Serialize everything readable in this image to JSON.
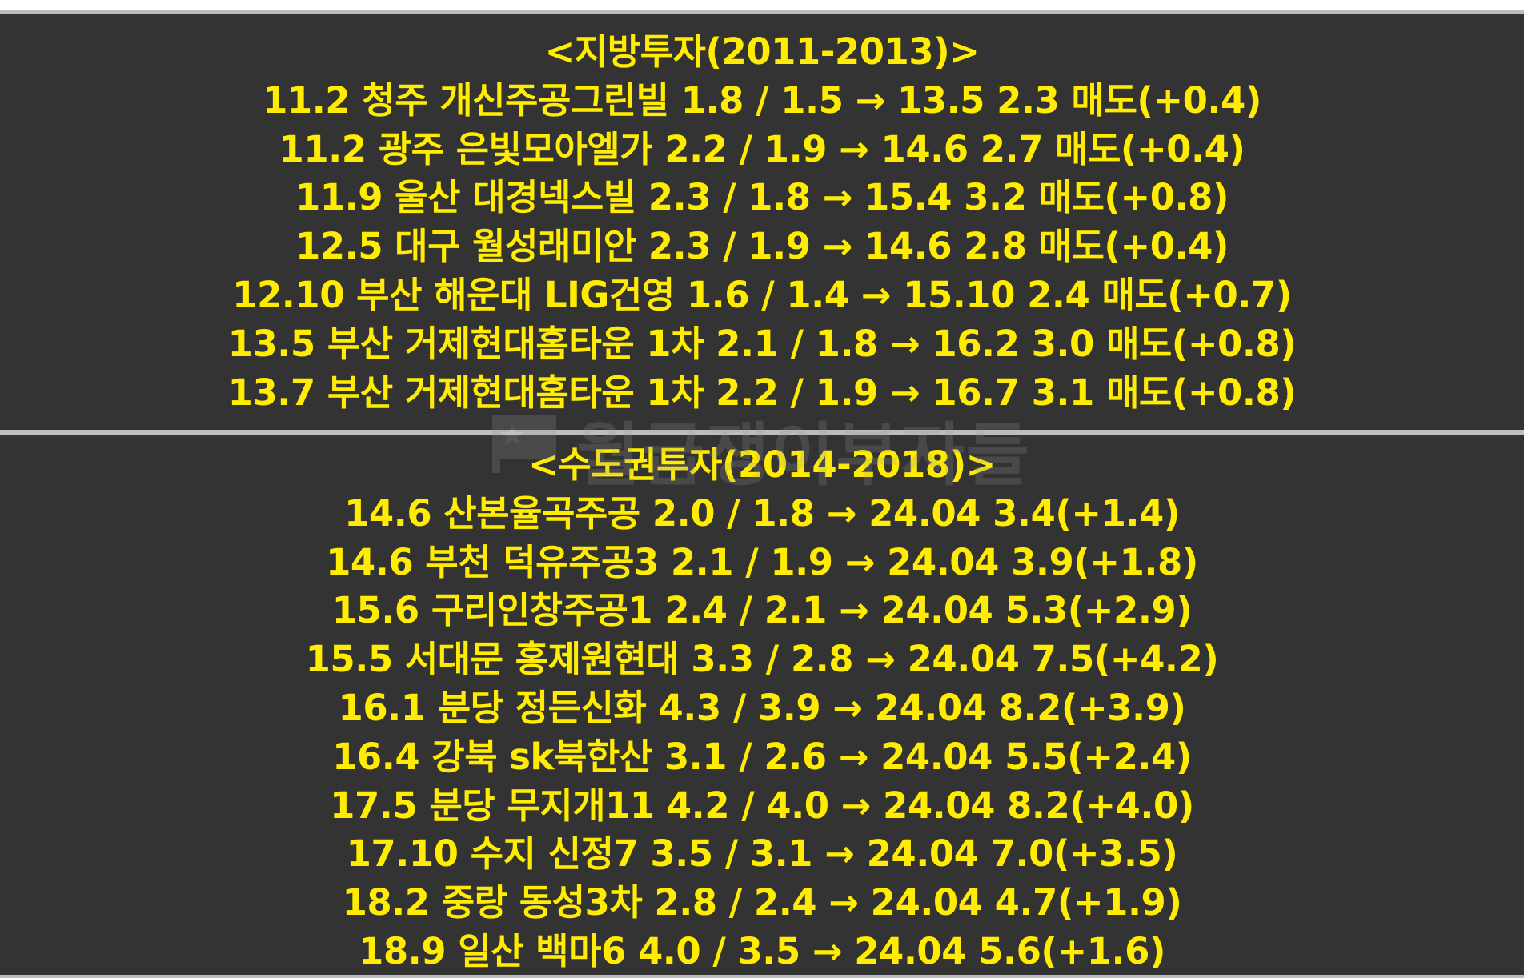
{
  "colors": {
    "background": "#333333",
    "text": "#ffec00",
    "separator": "#bdbdbd"
  },
  "sections": [
    {
      "title": "<지방투자(2011-2013)>",
      "rows": [
        "11.2 청주 개신주공그린빌 1.8 / 1.5 → 13.5 2.3 매도(+0.4)",
        "11.2 광주 은빛모아엘가 2.2 / 1.9 → 14.6 2.7 매도(+0.4)",
        "11.9 울산 대경넥스빌 2.3 / 1.8 → 15.4 3.2 매도(+0.8)",
        "12.5 대구 월성래미안 2.3 / 1.9 → 14.6 2.8 매도(+0.4)",
        "12.10 부산 해운대 LIG건영 1.6 / 1.4 → 15.10 2.4 매도(+0.7)",
        "13.5 부산 거제현대홈타운 1차 2.1 / 1.8 → 16.2 3.0 매도(+0.8)",
        "13.7 부산 거제현대홈타운 1차 2.2 / 1.9 → 16.7 3.1 매도(+0.8)"
      ]
    },
    {
      "title": "<수도권투자(2014-2018)>",
      "rows": [
        "14.6 산본율곡주공 2.0 / 1.8 → 24.04 3.4(+1.4)",
        "14.6 부천 덕유주공3 2.1 / 1.9 → 24.04 3.9(+1.8)",
        "15.6 구리인창주공1 2.4 / 2.1 → 24.04 5.3(+2.9)",
        "15.5 서대문 홍제원현대 3.3 / 2.8 → 24.04 7.5(+4.2)",
        "16.1 분당 정든신화 4.3 / 3.9 → 24.04 8.2(+3.9)",
        "16.4 강북 sk북한산 3.1 / 2.6 → 24.04 5.5(+2.4)",
        "17.5 분당 무지개11 4.2 / 4.0 → 24.04 8.2(+4.0)",
        "17.10 수지 신정7 3.5 / 3.1 → 24.04 7.0(+3.5)",
        "18.2 중랑 동성3차 2.8 / 2.4 → 24.04 4.7(+1.9)",
        "18.9 일산 백마6 4.0 / 3.5 → 24.04 5.6(+1.6)"
      ]
    }
  ],
  "watermark": {
    "text": "월급쟁이부자들",
    "icon": "star-flag-icon"
  }
}
